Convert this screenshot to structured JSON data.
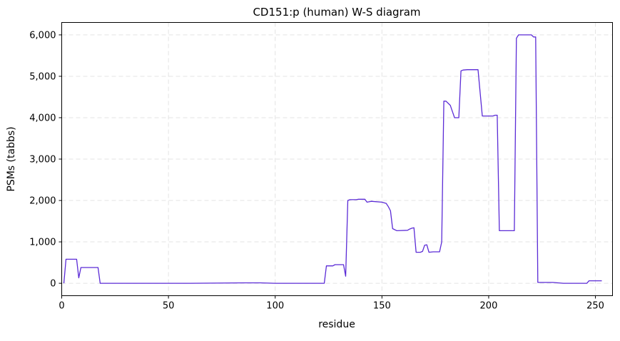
{
  "chart_data": {
    "type": "line",
    "title": "CD151:p (human) W-S diagram",
    "xlabel": "residue",
    "ylabel": "PSMs (tabbs)",
    "xlim": [
      0,
      258
    ],
    "ylim": [
      -300,
      6300
    ],
    "x_ticks": [
      0,
      50,
      100,
      150,
      200,
      250
    ],
    "x_tick_labels": [
      "0",
      "50",
      "100",
      "150",
      "200",
      "250"
    ],
    "y_ticks": [
      0,
      1000,
      2000,
      3000,
      4000,
      5000,
      6000
    ],
    "y_tick_labels": [
      "0",
      "1,000",
      "2,000",
      "3,000",
      "4,000",
      "5,000",
      "6,000"
    ],
    "grid": true,
    "series": [
      {
        "color": "#5b2bd6",
        "x": [
          1,
          2,
          7,
          8,
          9,
          17,
          18,
          60,
          85,
          93,
          100,
          113,
          123,
          124,
          127,
          128,
          132,
          133,
          134,
          135,
          138,
          139,
          142,
          143,
          145,
          150,
          152,
          153,
          154,
          155,
          157,
          162,
          163,
          164,
          165,
          166,
          168,
          169,
          170,
          171,
          172,
          174,
          177,
          178,
          179,
          180,
          182,
          184,
          186,
          187,
          188,
          190,
          191,
          193,
          194,
          195,
          197,
          201,
          202,
          203,
          204,
          205,
          206,
          211,
          212,
          213,
          214,
          219,
          220,
          221,
          222,
          223,
          230,
          235,
          246,
          247,
          253
        ],
        "y": [
          0,
          580,
          580,
          130,
          380,
          380,
          0,
          0,
          10,
          10,
          0,
          0,
          0,
          420,
          420,
          450,
          450,
          170,
          2000,
          2020,
          2020,
          2030,
          2030,
          1960,
          1980,
          1960,
          1930,
          1850,
          1750,
          1320,
          1270,
          1280,
          1310,
          1330,
          1340,
          750,
          750,
          770,
          920,
          930,
          750,
          760,
          760,
          1000,
          4400,
          4400,
          4300,
          4000,
          4000,
          5130,
          5150,
          5160,
          5160,
          5160,
          5160,
          5160,
          4040,
          4040,
          4040,
          4060,
          4060,
          1270,
          1270,
          1270,
          1270,
          5920,
          6000,
          6000,
          6000,
          5950,
          5950,
          20,
          20,
          0,
          0,
          60,
          60
        ]
      }
    ]
  }
}
